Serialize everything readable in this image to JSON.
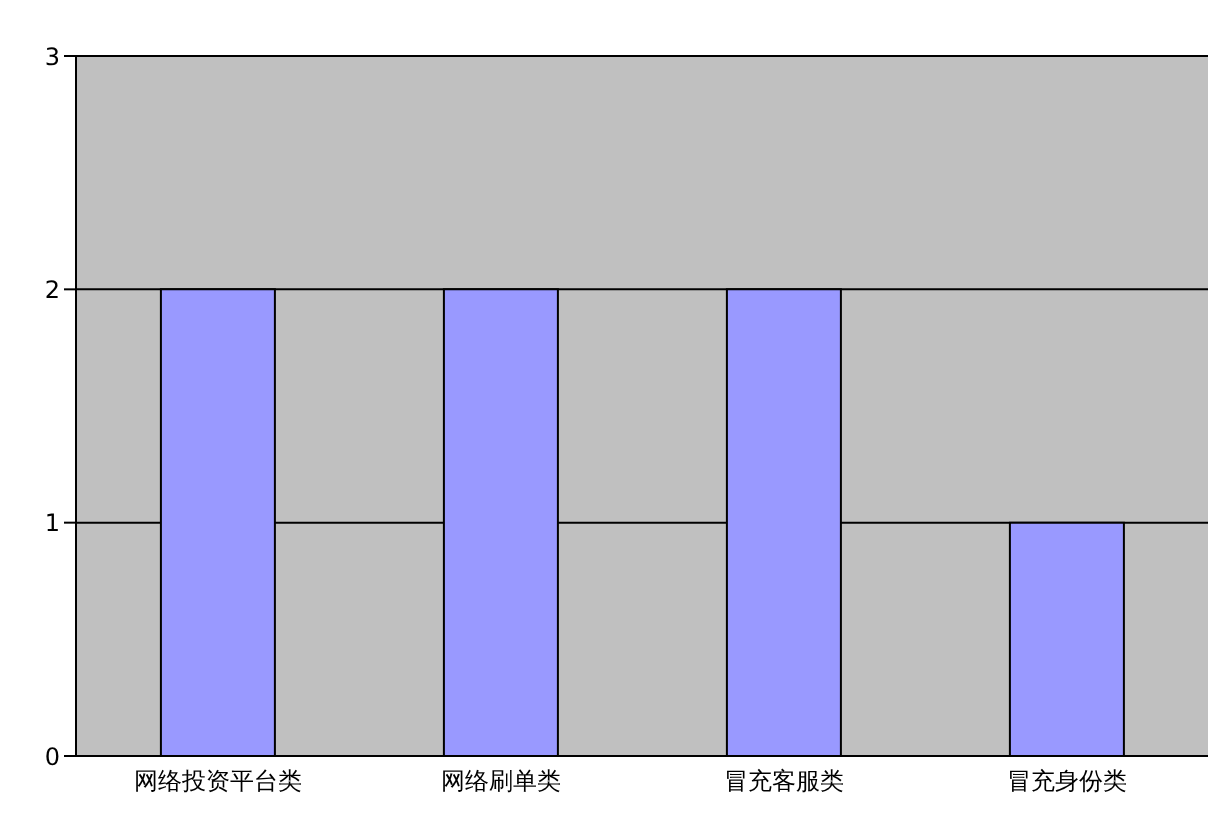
{
  "chart_data": {
    "type": "bar",
    "categories": [
      "网络投资平台类",
      "网络刷单类",
      "冒充客服类",
      "冒充身份类"
    ],
    "values": [
      2,
      2,
      2,
      1
    ],
    "color": "#9999ff",
    "ylim": [
      0,
      3
    ],
    "yticks": [
      0,
      1,
      2,
      3
    ],
    "grid": "y"
  }
}
